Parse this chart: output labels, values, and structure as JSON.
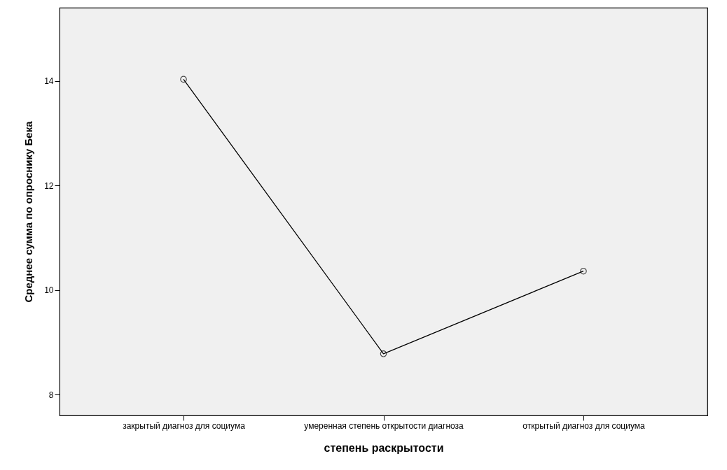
{
  "chart_data": {
    "type": "line",
    "xlabel": "степень раскрытости",
    "ylabel": "Среднее сумма по опроснику Бека",
    "categories": [
      "закрытый диагноз для социума",
      "умеренная степень открытости диагноза",
      "открытый диагноз для социума"
    ],
    "series": [
      {
        "color": "#000000",
        "values": [
          14.03,
          8.78,
          10.36
        ]
      }
    ],
    "ylim": [
      7.6,
      15.4
    ],
    "yticks": [
      8,
      10,
      12,
      14
    ],
    "marker": "circle",
    "line_style": "solid"
  }
}
